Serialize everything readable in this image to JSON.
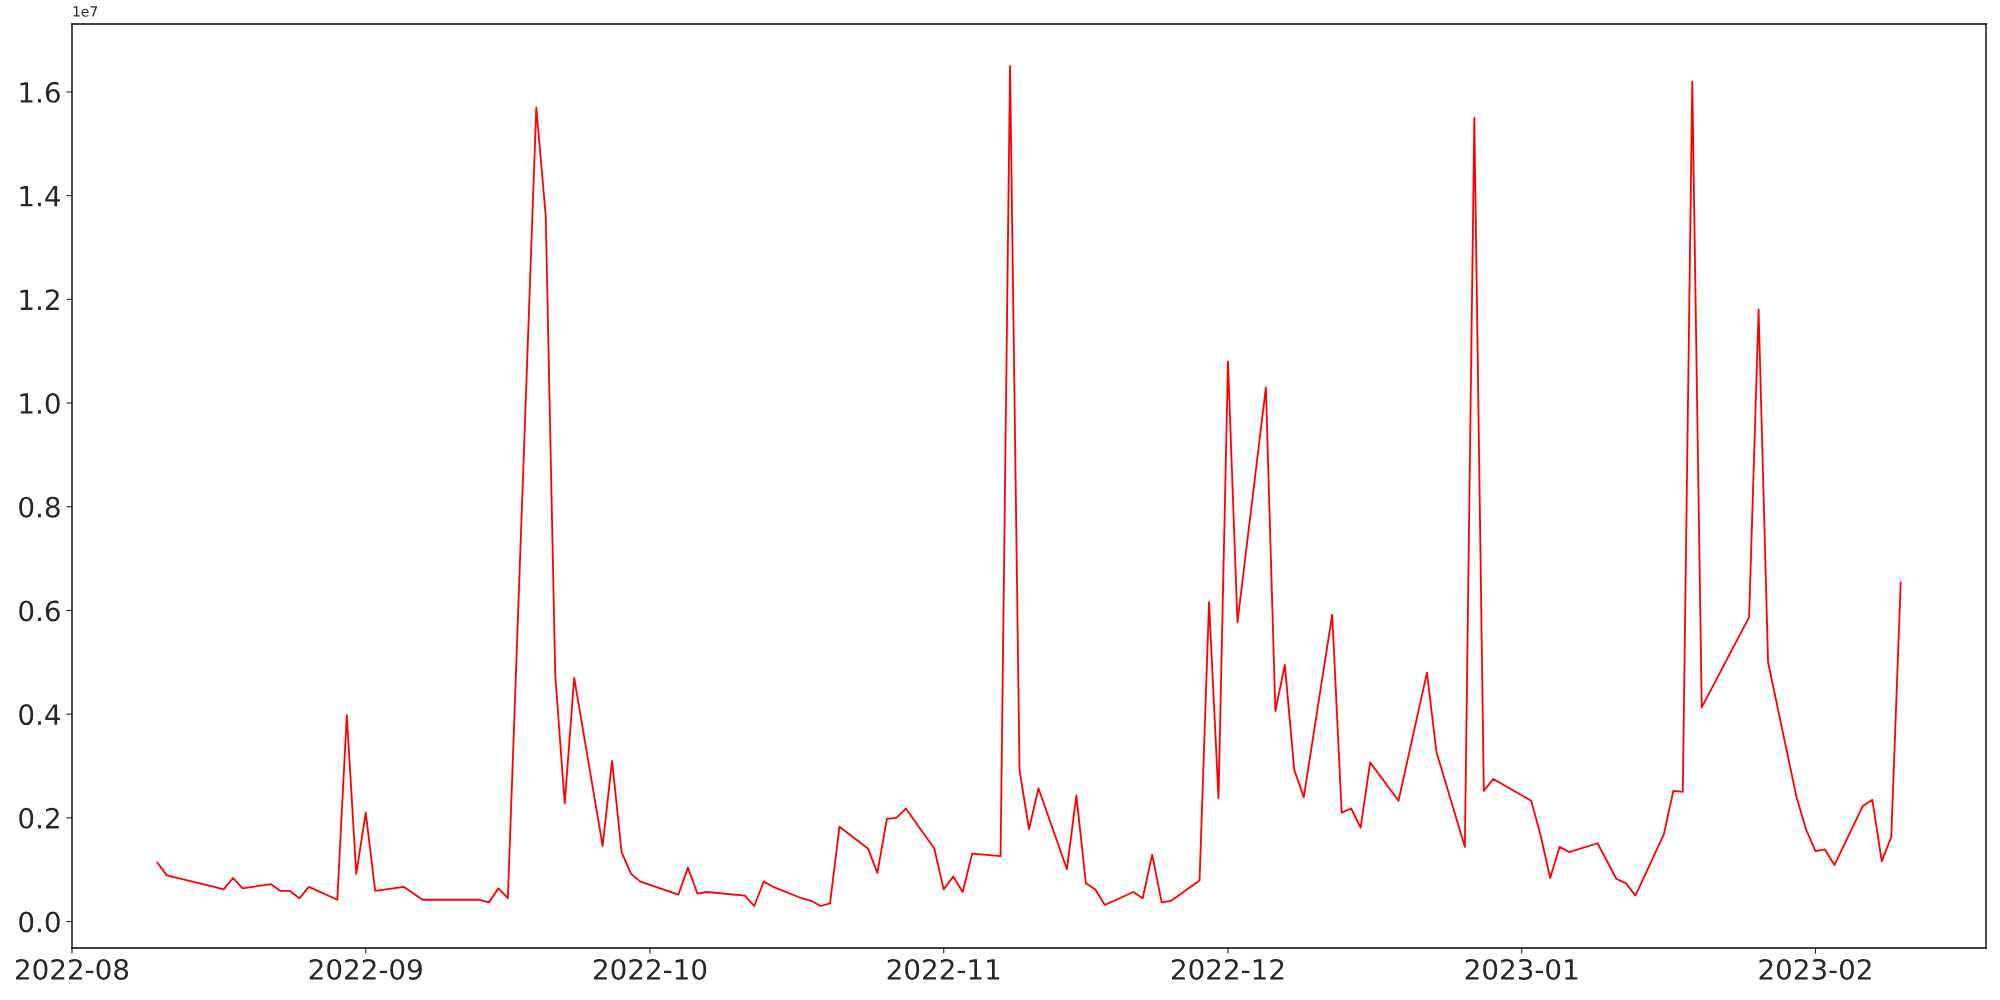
{
  "chart_data": {
    "type": "line",
    "x": [
      "2022-08-10",
      "2022-08-11",
      "2022-08-16",
      "2022-08-17",
      "2022-08-18",
      "2022-08-19",
      "2022-08-22",
      "2022-08-23",
      "2022-08-24",
      "2022-08-25",
      "2022-08-26",
      "2022-08-29",
      "2022-08-30",
      "2022-08-31",
      "2022-09-01",
      "2022-09-02",
      "2022-09-05",
      "2022-09-07",
      "2022-09-13",
      "2022-09-14",
      "2022-09-15",
      "2022-09-16",
      "2022-09-19",
      "2022-09-20",
      "2022-09-21",
      "2022-09-22",
      "2022-09-23",
      "2022-09-26",
      "2022-09-27",
      "2022-09-28",
      "2022-09-29",
      "2022-09-30",
      "2022-10-04",
      "2022-10-05",
      "2022-10-06",
      "2022-10-07",
      "2022-10-11",
      "2022-10-12",
      "2022-10-13",
      "2022-10-14",
      "2022-10-17",
      "2022-10-18",
      "2022-10-19",
      "2022-10-20",
      "2022-10-21",
      "2022-10-24",
      "2022-10-25",
      "2022-10-26",
      "2022-10-27",
      "2022-10-28",
      "2022-10-31",
      "2022-11-01",
      "2022-11-02",
      "2022-11-03",
      "2022-11-04",
      "2022-11-07",
      "2022-11-08",
      "2022-11-09",
      "2022-11-10",
      "2022-11-11",
      "2022-11-14",
      "2022-11-15",
      "2022-11-16",
      "2022-11-17",
      "2022-11-18",
      "2022-11-21",
      "2022-11-22",
      "2022-11-23",
      "2022-11-24",
      "2022-11-25",
      "2022-11-28",
      "2022-11-29",
      "2022-11-30",
      "2022-12-01",
      "2022-12-02",
      "2022-12-05",
      "2022-12-06",
      "2022-12-07",
      "2022-12-08",
      "2022-12-09",
      "2022-12-12",
      "2022-12-13",
      "2022-12-14",
      "2022-12-15",
      "2022-12-16",
      "2022-12-19",
      "2022-12-22",
      "2022-12-23",
      "2022-12-26",
      "2022-12-27",
      "2022-12-28",
      "2022-12-29",
      "2023-01-02",
      "2023-01-03",
      "2023-01-04",
      "2023-01-05",
      "2023-01-06",
      "2023-01-09",
      "2023-01-11",
      "2023-01-12",
      "2023-01-13",
      "2023-01-16",
      "2023-01-17",
      "2023-01-18",
      "2023-01-19",
      "2023-01-20",
      "2023-01-25",
      "2023-01-26",
      "2023-01-27",
      "2023-01-30",
      "2023-01-31",
      "2023-02-01",
      "2023-02-02",
      "2023-02-03",
      "2023-02-06",
      "2023-02-07",
      "2023-02-08",
      "2023-02-09",
      "2023-02-10"
    ],
    "series": [
      {
        "color": "#ff0000",
        "values": [
          0.114,
          0.089,
          0.067,
          0.062,
          0.084,
          0.064,
          0.072,
          0.059,
          0.059,
          0.045,
          0.067,
          0.042,
          0.398,
          0.092,
          0.21,
          0.059,
          0.067,
          0.042,
          0.042,
          0.037,
          0.064,
          0.045,
          1.57,
          1.36,
          0.475,
          0.228,
          0.47,
          0.146,
          0.31,
          0.134,
          0.092,
          0.077,
          0.052,
          0.104,
          0.054,
          0.057,
          0.05,
          0.03,
          0.077,
          0.067,
          0.045,
          0.04,
          0.03,
          0.035,
          0.183,
          0.141,
          0.094,
          0.198,
          0.2,
          0.218,
          0.141,
          0.062,
          0.087,
          0.057,
          0.131,
          0.126,
          1.65,
          0.292,
          0.178,
          0.257,
          0.101,
          0.243,
          0.074,
          0.062,
          0.032,
          0.057,
          0.045,
          0.129,
          0.037,
          0.04,
          0.079,
          0.616,
          0.238,
          1.08,
          0.577,
          1.03,
          0.406,
          0.495,
          0.292,
          0.24,
          0.592,
          0.21,
          0.218,
          0.181,
          0.307,
          0.233,
          0.48,
          0.327,
          0.144,
          1.55,
          0.252,
          0.275,
          0.233,
          0.166,
          0.084,
          0.144,
          0.134,
          0.151,
          0.082,
          0.074,
          0.05,
          0.168,
          0.252,
          0.25,
          1.62,
          0.413,
          0.587,
          1.18,
          0.5,
          0.24,
          0.178,
          0.136,
          0.139,
          0.109,
          0.223,
          0.235,
          0.116,
          0.163,
          0.654
        ]
      }
    ],
    "xlim": [
      "2022-08-01",
      "2023-02-19"
    ],
    "xticks": [
      {
        "value": "2022-08-01",
        "label": "2022-08"
      },
      {
        "value": "2022-09-01",
        "label": "2022-09"
      },
      {
        "value": "2022-10-01",
        "label": "2022-10"
      },
      {
        "value": "2022-11-01",
        "label": "2022-11"
      },
      {
        "value": "2022-12-01",
        "label": "2022-12"
      },
      {
        "value": "2023-01-01",
        "label": "2023-01"
      },
      {
        "value": "2023-02-01",
        "label": "2023-02"
      }
    ],
    "ylim": [
      -0.051,
      1.731
    ],
    "yticks": [
      {
        "value": 0,
        "label": "0.0"
      },
      {
        "value": 0.2,
        "label": "0.2"
      },
      {
        "value": 0.4,
        "label": "0.4"
      },
      {
        "value": 0.6,
        "label": "0.6"
      },
      {
        "value": 0.8,
        "label": "0.8"
      },
      {
        "value": 1.0,
        "label": "1.0"
      },
      {
        "value": 1.2,
        "label": "1.2"
      },
      {
        "value": 1.4,
        "label": "1.4"
      },
      {
        "value": 1.6,
        "label": "1.6"
      }
    ],
    "annotations": [
      "1e7"
    ],
    "grid": false,
    "legend": false,
    "marker": "none",
    "line_style": "solid"
  }
}
